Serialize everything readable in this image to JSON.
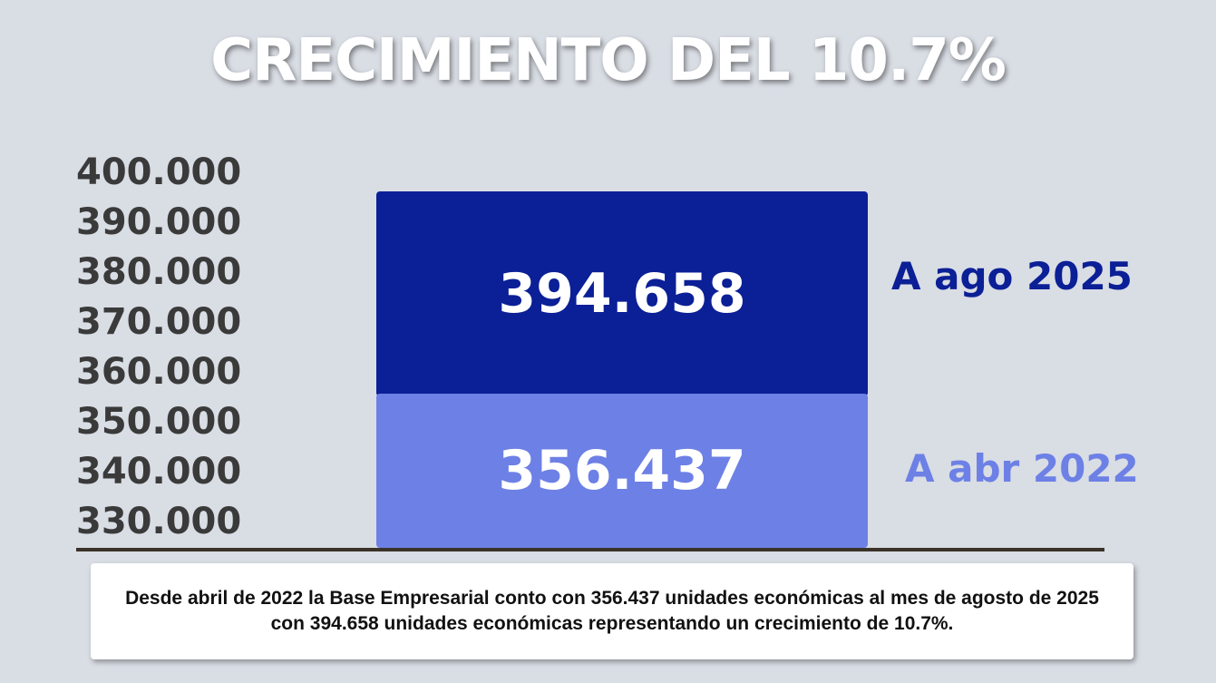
{
  "header": {
    "title": "CRECIMIENTO DEL 10.7%"
  },
  "chart_data": {
    "type": "bar",
    "stacked": true,
    "y_ticks": [
      "400.000",
      "390.000",
      "380.000",
      "370.000",
      "360.000",
      "350.000",
      "340.000",
      "330.000"
    ],
    "series": [
      {
        "name": "A abr 2022",
        "value": 356437,
        "value_label": "356.437",
        "color": "#6d80e6",
        "label_color": "#6d80e6"
      },
      {
        "name": "A ago 2025",
        "value": 394658,
        "value_label": "394.658",
        "color": "#0b1f96",
        "label_color": "#0b1f96"
      }
    ],
    "grid": false,
    "legend": "right"
  },
  "note": {
    "text": "Desde abril de 2022 la Base Empresarial conto con 356.437 unidades económicas al mes de agosto de 2025 con 394.658 unidades económicas representando un crecimiento de 10.7%."
  }
}
